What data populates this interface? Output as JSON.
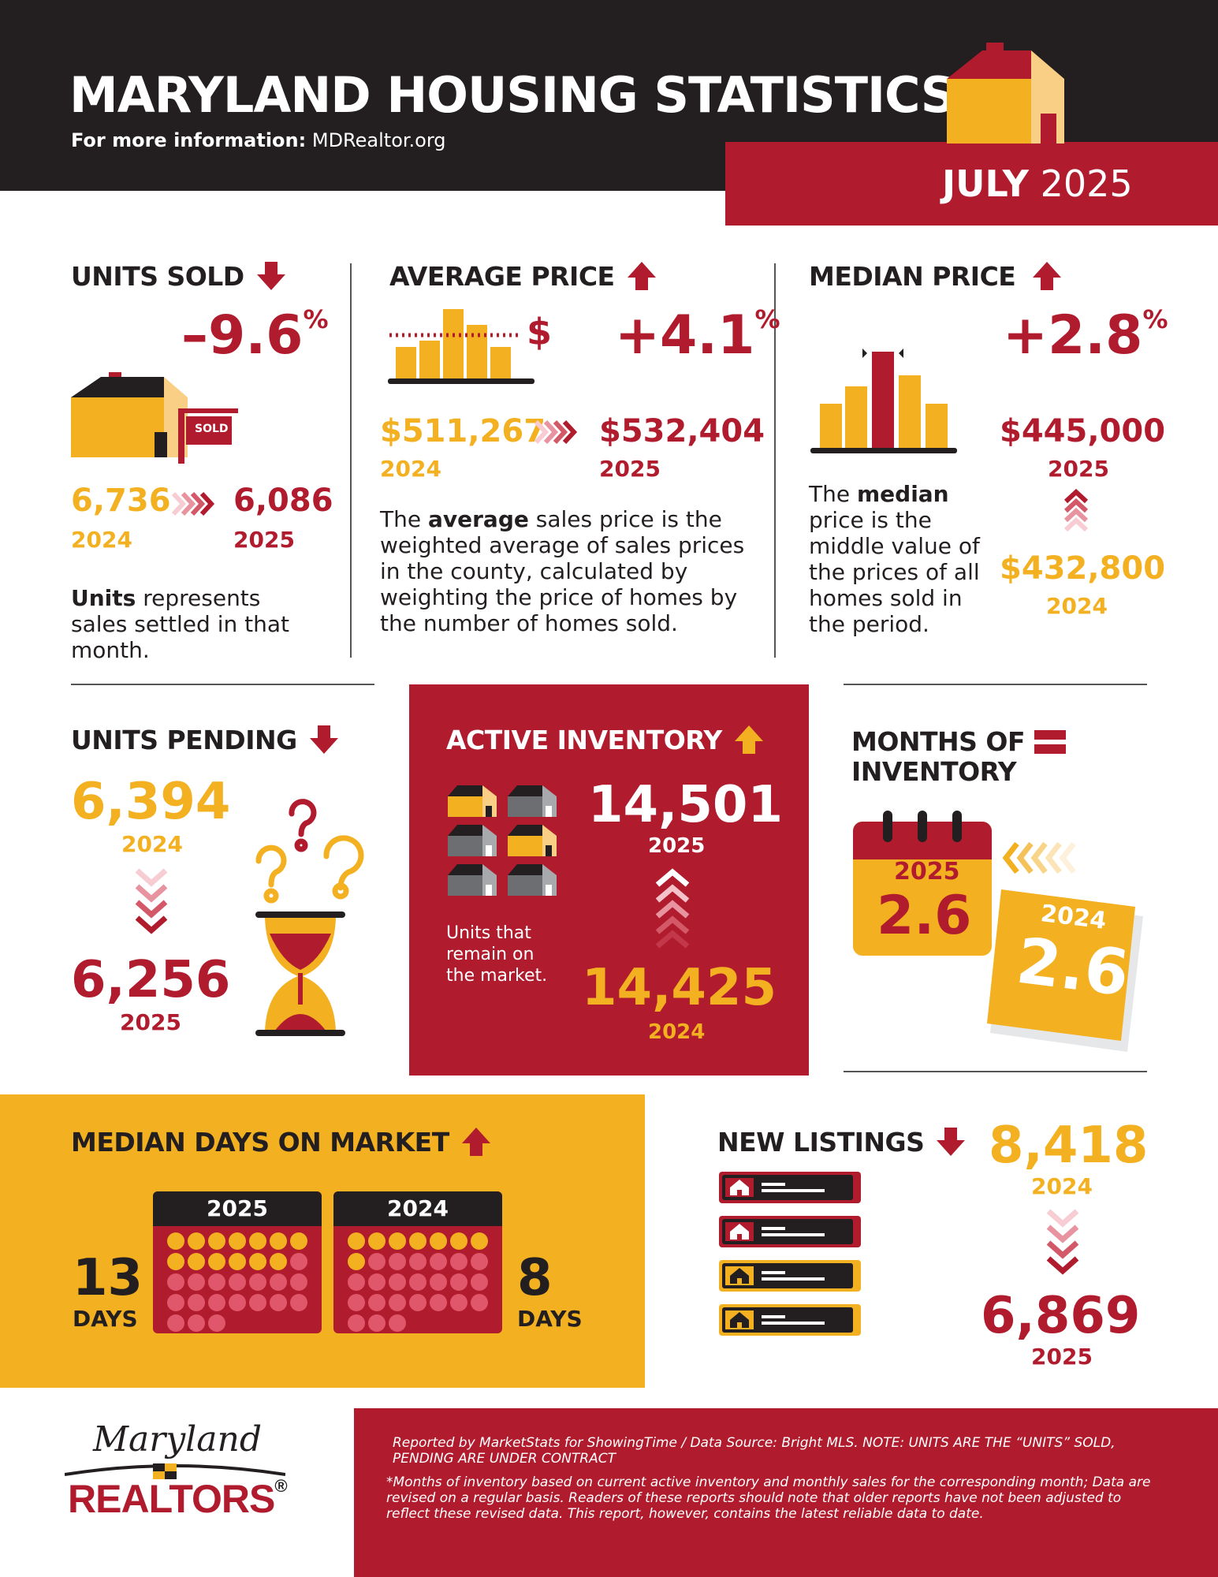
{
  "header": {
    "title": "MARYLAND HOUSING STATISTICS",
    "info_label": "For more information:",
    "info_link": "MDRealtor.org",
    "month": "JULY",
    "year": "2025"
  },
  "units_sold": {
    "title": "UNITS SOLD",
    "change": "–9.6",
    "pct": "%",
    "sign_label": "SOLD",
    "prev_value": "6,736",
    "prev_year": "2024",
    "curr_value": "6,086",
    "curr_year": "2025",
    "note_bold": "Units",
    "note_rest": " represents sales settled in that month."
  },
  "average_price": {
    "title": "AVERAGE PRICE",
    "change": "+4.1",
    "pct": "%",
    "dollar": "$",
    "prev_value": "$511,267",
    "prev_year": "2024",
    "curr_value": "$532,404",
    "curr_year": "2025",
    "note_pre": "The ",
    "note_bold": "average",
    "note_rest": " sales price is the weighted average of sales prices in the county, calculated by weighting the price of homes by the number of homes sold."
  },
  "median_price": {
    "title": "MEDIAN PRICE",
    "change": "+2.8",
    "pct": "%",
    "curr_value": "$445,000",
    "curr_year": "2025",
    "prev_value": "$432,800",
    "prev_year": "2024",
    "note_pre": "The ",
    "note_bold": "median",
    "note_rest": " price is the middle value of the prices of all homes sold in the period."
  },
  "units_pending": {
    "title": "UNITS PENDING",
    "prev_value": "6,394",
    "prev_year": "2024",
    "curr_value": "6,256",
    "curr_year": "2025"
  },
  "active_inventory": {
    "title": "ACTIVE INVENTORY",
    "curr_value": "14,501",
    "curr_year": "2025",
    "prev_value": "14,425",
    "prev_year": "2024",
    "note": "Units that remain on the market."
  },
  "months_inventory": {
    "title_line1": "MONTHS OF",
    "title_line2": "INVENTORY",
    "curr_year": "2025",
    "curr_value": "2.6",
    "prev_year": "2024",
    "prev_value": "2.6"
  },
  "days_on_market": {
    "title": "MEDIAN DAYS ON MARKET",
    "curr_year": "2025",
    "prev_year": "2024",
    "curr_days": "13",
    "prev_days": "8",
    "days_label": "DAYS"
  },
  "new_listings": {
    "title": "NEW LISTINGS",
    "prev_value": "8,418",
    "prev_year": "2024",
    "curr_value": "6,869",
    "curr_year": "2025"
  },
  "footer": {
    "logo_script": "Maryland",
    "logo_word": "REALTORS",
    "logo_mark": "®",
    "source_text": "Reported by MarketStats for ShowingTime / Data Source: Bright MLS. NOTE: UNITS ARE THE “UNITS” SOLD, PENDING ARE UNDER CONTRACT",
    "note_text": "*Months of inventory based on current active inventory and monthly sales for the corresponding month; Data are revised on a regular basis. Readers of these reports should note that older reports have not been adjusted to reflect these revised data. This report, however, contains the latest reliable data to date."
  },
  "colors": {
    "red": "#b01c2e",
    "yellow": "#f3b020",
    "light_yellow": "#f9cf86",
    "dark": "#231f20",
    "gray": "#6d6e71"
  }
}
